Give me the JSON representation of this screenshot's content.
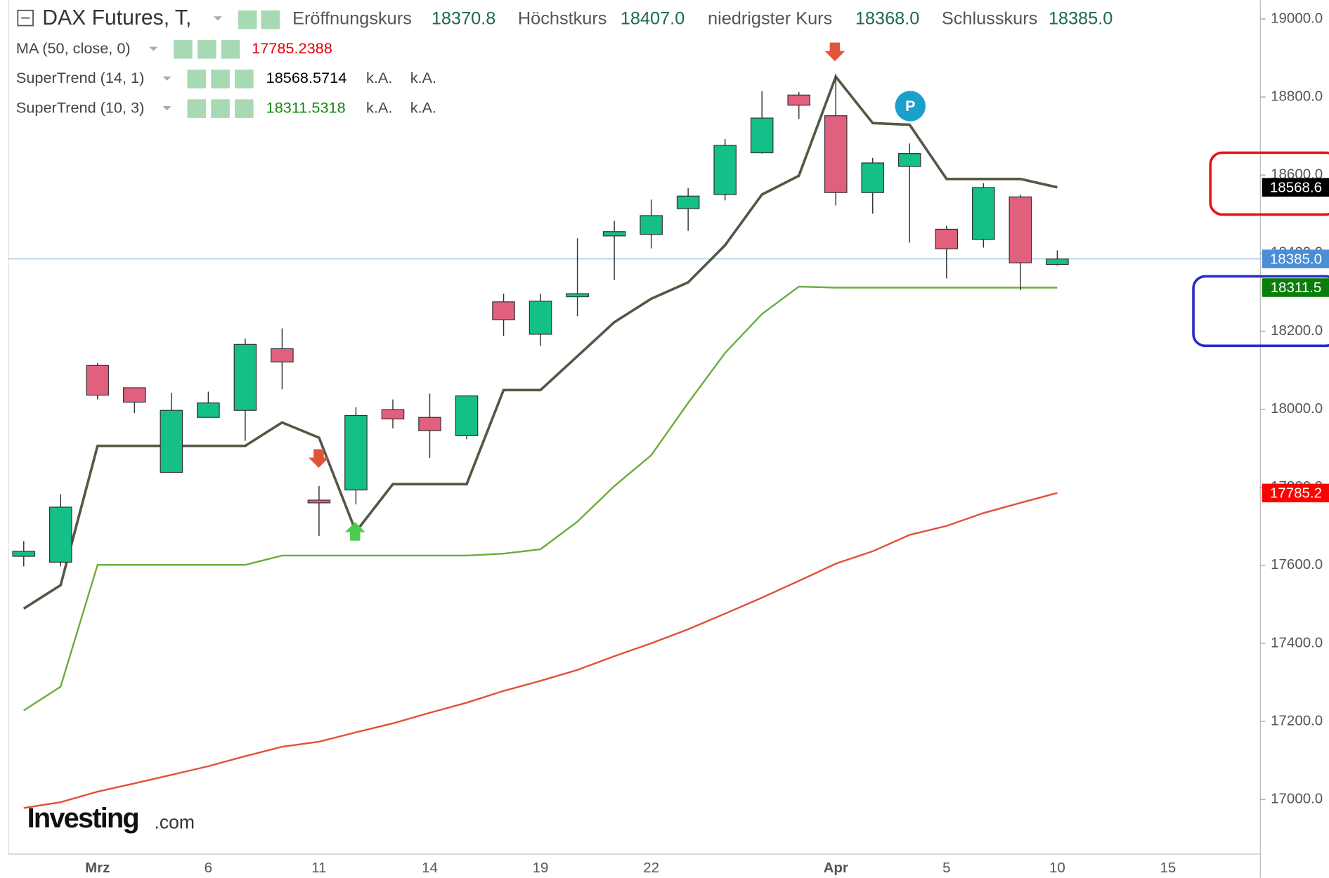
{
  "chart_data": {
    "type": "candlestick",
    "title": "DAX Futures, T,",
    "ohlc_legend": [
      {
        "name": "Eröffnungskurs",
        "value": "18370.8"
      },
      {
        "name": "Höchstkurs",
        "value": "18407.0"
      },
      {
        "name": "niedrigster Kurs",
        "value": "18368.0"
      },
      {
        "name": "Schlusskurs",
        "value": "18385.0"
      }
    ],
    "categories": [
      null,
      null,
      "Mrz",
      null,
      null,
      "6",
      null,
      null,
      "11",
      null,
      null,
      "14",
      null,
      null,
      "19",
      null,
      null,
      "22",
      null,
      null,
      null,
      null,
      "Apr",
      null,
      null,
      "5",
      null,
      null,
      "10",
      null,
      null,
      "15"
    ],
    "open": [
      17623,
      17608,
      18112,
      18055,
      17838,
      17979,
      17997,
      18155,
      17767,
      17793,
      17999,
      17979,
      17932,
      18275,
      18192,
      18288,
      18444,
      18448,
      18514,
      18550,
      18657,
      18805,
      18752,
      18555,
      18622,
      18461,
      18435,
      18544,
      18370.8,
      null,
      null,
      null
    ],
    "high": [
      17662,
      17782,
      18118,
      18055,
      18042,
      18045,
      18181,
      18207,
      17803,
      18005,
      18025,
      18040,
      18034,
      18296,
      18296,
      18438,
      18483,
      18537,
      18566,
      18692,
      18815,
      18813,
      18859,
      18644,
      18681,
      18470,
      18579,
      18550,
      18407,
      null,
      null,
      null
    ],
    "low": [
      17597,
      17597,
      18025,
      17990,
      17838,
      17979,
      17919,
      18051,
      17675,
      17756,
      17951,
      17875,
      17923,
      18188,
      18162,
      18238,
      18331,
      18412,
      18457,
      18535,
      18655,
      18744,
      18522,
      18501,
      18427,
      18335,
      18414,
      18305,
      18368,
      null,
      null,
      null
    ],
    "close": [
      17636,
      17749,
      18036,
      18018,
      17997,
      18016,
      18166,
      18121,
      17760,
      17984,
      17975,
      17945,
      18034,
      18229,
      18277,
      18296,
      18455,
      18496,
      18546,
      18676,
      18746,
      18779,
      18555,
      18631,
      18655,
      18411,
      18568,
      18375,
      18385,
      null,
      null,
      null
    ],
    "up_color": "#14bf88",
    "down_color": "#e0607e",
    "close_axis_label": "18385.0",
    "close_line_color": "#4a8fd6",
    "series": [
      {
        "name": "MA (50, close, 0)",
        "color": "#e0503c",
        "legend_value": "17785.2388",
        "value_color": "#e00000",
        "extra": [],
        "axis_label": "17785.2",
        "label_color": "#ff0000",
        "values": [
          16978,
          16993,
          17020,
          17041,
          17063,
          17085,
          17111,
          17135,
          17148,
          17172,
          17195,
          17222,
          17248,
          17278,
          17304,
          17332,
          17367,
          17400,
          17436,
          17476,
          17517,
          17560,
          17604,
          17636,
          17678,
          17701,
          17734,
          17760,
          17785.24,
          null,
          null,
          null
        ]
      },
      {
        "name": "SuperTrend (14, 1)",
        "color": "#555744",
        "legend_value": "18568.5714",
        "value_color": "#000000",
        "extra": [
          "k.A.",
          "k.A."
        ],
        "axis_label": "18568.6",
        "label_color": "#000000",
        "values": [
          17489,
          17549,
          17906,
          17906,
          17906,
          17906,
          17906,
          17966,
          17927,
          17686,
          17808,
          17808,
          17808,
          18049,
          18049,
          18136,
          18223,
          18283,
          18325,
          18420,
          18550,
          18598,
          18852,
          18733,
          18729,
          18590,
          18590,
          18590,
          18568.57,
          null,
          null,
          null
        ]
      },
      {
        "name": "SuperTrend (10, 3)",
        "color": "#6aad3c",
        "legend_value": "18311.5318",
        "value_color": "#118811",
        "extra": [
          "k.A.",
          "k.A."
        ],
        "axis_label": "18311.5",
        "label_color": "#0a7d0a",
        "values": [
          17228,
          17289,
          17601,
          17601,
          17601,
          17601,
          17601,
          17625,
          17625,
          17625,
          17625,
          17625,
          17625,
          17630,
          17641,
          17712,
          17803,
          17882,
          18016,
          18144,
          18244,
          18314,
          18311.53,
          18311.53,
          18311.53,
          18311.53,
          18311.53,
          18311.53,
          18311.53,
          null,
          null,
          null
        ]
      }
    ],
    "ylim": [
      16860,
      19048
    ],
    "yticks": [
      {
        "value": 17000,
        "label": "17000.0"
      },
      {
        "value": 17200,
        "label": "17200.0"
      },
      {
        "value": 17400,
        "label": "17400.0"
      },
      {
        "value": 17600,
        "label": "17600.0"
      },
      {
        "value": 17800,
        "label": "17800.0"
      },
      {
        "value": 18000,
        "label": "18000.0"
      },
      {
        "value": 18200,
        "label": "18200.0"
      },
      {
        "value": 18400,
        "label": "18400.0"
      },
      {
        "value": 18600,
        "label": "18600.0"
      },
      {
        "value": 18800,
        "label": "18800.0"
      },
      {
        "value": 19000,
        "label": "19000.0"
      }
    ],
    "pivot_label": "P",
    "watermark": {
      "brand": "Investing",
      "suffix": ".com"
    }
  }
}
